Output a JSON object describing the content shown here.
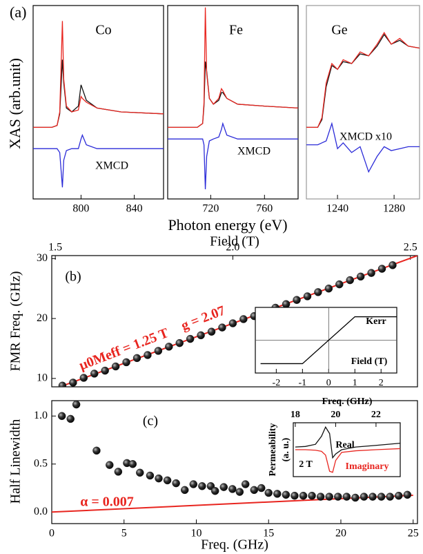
{
  "chart_data": [
    {
      "type": "line",
      "panel_label": "(a)",
      "ylabel": "XAS (arb.unit)",
      "xlabel": "Photon energy (eV)",
      "title": "Co",
      "annotations": [
        {
          "text": "XMCD"
        }
      ],
      "xlim": [
        764,
        862
      ],
      "xticks": [
        800,
        840
      ],
      "ylim": [
        0,
        1
      ],
      "x": [
        764,
        778,
        782,
        784,
        786,
        787,
        789,
        793,
        798,
        800,
        801,
        804,
        812,
        830,
        862
      ],
      "series": [
        {
          "color": "#111111",
          "values": [
            0.37,
            0.37,
            0.38,
            0.44,
            0.72,
            0.6,
            0.47,
            0.45,
            0.48,
            0.59,
            0.57,
            0.51,
            0.47,
            0.45,
            0.44
          ]
        },
        {
          "color": "#e8251f",
          "values": [
            0.37,
            0.37,
            0.38,
            0.45,
            0.92,
            0.62,
            0.48,
            0.45,
            0.46,
            0.53,
            0.52,
            0.5,
            0.47,
            0.45,
            0.44
          ]
        },
        {
          "color": "#2b2bd8",
          "values": [
            0.26,
            0.26,
            0.26,
            0.24,
            0.06,
            0.2,
            0.25,
            0.26,
            0.26,
            0.31,
            0.33,
            0.28,
            0.26,
            0.26,
            0.26
          ]
        }
      ]
    },
    {
      "type": "line",
      "title": "Fe",
      "annotations": [
        {
          "text": "XMCD"
        }
      ],
      "xlim": [
        688,
        785
      ],
      "xticks": [
        720,
        760
      ],
      "ylim": [
        0,
        1
      ],
      "x": [
        688,
        710,
        714,
        715,
        716,
        717,
        719,
        722,
        726,
        728,
        729,
        732,
        740,
        760,
        785
      ],
      "series": [
        {
          "color": "#111111",
          "values": [
            0.37,
            0.37,
            0.39,
            0.48,
            0.71,
            0.66,
            0.52,
            0.49,
            0.51,
            0.55,
            0.55,
            0.52,
            0.49,
            0.48,
            0.47
          ]
        },
        {
          "color": "#e8251f",
          "values": [
            0.37,
            0.37,
            0.39,
            0.5,
            0.99,
            0.65,
            0.52,
            0.49,
            0.52,
            0.57,
            0.56,
            0.52,
            0.49,
            0.48,
            0.47
          ]
        },
        {
          "color": "#2b2bd8",
          "values": [
            0.31,
            0.31,
            0.31,
            0.28,
            0.05,
            0.22,
            0.3,
            0.31,
            0.32,
            0.36,
            0.39,
            0.33,
            0.31,
            0.31,
            0.31
          ]
        }
      ]
    },
    {
      "type": "line",
      "title": "Ge",
      "annotations": [
        {
          "text": "XMCD x10"
        }
      ],
      "xlim": [
        1218,
        1298
      ],
      "xticks": [
        1240,
        1280
      ],
      "ylim": [
        0,
        1
      ],
      "x": [
        1218,
        1226,
        1229,
        1232,
        1236,
        1240,
        1244,
        1250,
        1256,
        1262,
        1268,
        1273,
        1278,
        1284,
        1290,
        1298
      ],
      "series": [
        {
          "color": "#111111",
          "values": [
            0.37,
            0.37,
            0.41,
            0.58,
            0.69,
            0.67,
            0.71,
            0.7,
            0.75,
            0.74,
            0.79,
            0.85,
            0.8,
            0.82,
            0.79,
            0.78
          ]
        },
        {
          "color": "#e8251f",
          "values": [
            0.37,
            0.37,
            0.42,
            0.6,
            0.7,
            0.67,
            0.72,
            0.7,
            0.76,
            0.74,
            0.8,
            0.86,
            0.8,
            0.83,
            0.79,
            0.78
          ]
        },
        {
          "color": "#2b2bd8",
          "values": [
            0.28,
            0.28,
            0.29,
            0.3,
            0.39,
            0.26,
            0.29,
            0.24,
            0.27,
            0.14,
            0.22,
            0.27,
            0.25,
            0.26,
            0.27,
            0.27
          ]
        }
      ]
    },
    {
      "type": "scatter",
      "panel_label": "(b)",
      "ylabel": "FMR Freq. (GHz)",
      "xlabel": "Field (T)",
      "xaxis": "top",
      "xlim": [
        1.49,
        2.52
      ],
      "xticks": [
        1.5,
        {
          "value": 2,
          "label": "2.0"
        },
        2.5
      ],
      "ylim": [
        8.6,
        30.5
      ],
      "yticks": [
        10,
        20,
        30
      ],
      "annotations": [
        {
          "text": "μ0Meff = 1.25 T",
          "color": "#e8251f"
        },
        {
          "text": "g = 2.07",
          "color": "#e8251f"
        }
      ],
      "series": [
        {
          "type": "line",
          "color": "#e8251f",
          "x": [
            1.52,
            2.52
          ],
          "values": [
            8.75,
            30.5
          ]
        },
        {
          "color": "#222222",
          "x": [
            1.52,
            1.55,
            1.58,
            1.61,
            1.64,
            1.67,
            1.7,
            1.73,
            1.76,
            1.79,
            1.82,
            1.85,
            1.88,
            1.91,
            1.94,
            1.97,
            2.0,
            2.03,
            2.06,
            2.09,
            2.12,
            2.15,
            2.18,
            2.21,
            2.24,
            2.27,
            2.3,
            2.33,
            2.36,
            2.39,
            2.42,
            2.45
          ],
          "values": [
            8.8,
            9.3,
            10.1,
            10.8,
            11.3,
            12.0,
            12.7,
            13.4,
            13.9,
            14.6,
            15.3,
            15.9,
            16.6,
            17.2,
            17.8,
            18.5,
            19.2,
            19.9,
            20.4,
            21.1,
            21.8,
            22.4,
            23.1,
            23.7,
            24.4,
            25.0,
            25.7,
            26.4,
            27.0,
            27.6,
            28.3,
            28.9
          ]
        }
      ]
    },
    {
      "type": "line",
      "xlim": [
        -2.8,
        2.6
      ],
      "xticks": [
        -2,
        -1,
        0,
        1,
        2
      ],
      "ylim": [
        -1.4,
        1.4
      ],
      "annotations": [
        {
          "text": "Kerr"
        },
        {
          "text": "Field (T)"
        }
      ],
      "series": [
        {
          "color": "#000000",
          "x": [
            -2.6,
            -1,
            1,
            2.6
          ],
          "values": [
            -1,
            -1,
            1,
            1
          ]
        }
      ]
    },
    {
      "type": "scatter",
      "panel_label": "(c)",
      "ylabel": "Half Linewidth",
      "xlabel": "Freq. (GHz)",
      "xlim": [
        0,
        25.3
      ],
      "xticks": [
        0,
        5,
        10,
        15,
        20,
        25
      ],
      "ylim": [
        -0.12,
        1.16
      ],
      "yticks": [
        {
          "value": 0,
          "label": "0.0"
        },
        0.5,
        {
          "value": 1,
          "label": "1.0"
        }
      ],
      "annotations": [
        {
          "text": "α = 0.007",
          "color": "#e8251f"
        }
      ],
      "series": [
        {
          "type": "line",
          "color": "#e8251f",
          "x": [
            0,
            25
          ],
          "values": [
            0,
            0.175
          ]
        },
        {
          "color": "#222222",
          "x": [
            0.7,
            1.3,
            1.7,
            3.1,
            4.0,
            4.6,
            5.2,
            5.6,
            6.1,
            6.8,
            7.4,
            8.0,
            8.6,
            9.2,
            9.8,
            10.4,
            11.0,
            11.3,
            11.9,
            12.5,
            13.0,
            13.4,
            14.0,
            14.5,
            15.0,
            15.6,
            16.2,
            16.8,
            17.4,
            18.0,
            18.6,
            19.2,
            19.8,
            20.4,
            21.0,
            21.6,
            22.2,
            22.8,
            23.4,
            24.0,
            24.6
          ],
          "values": [
            1.0,
            0.97,
            1.12,
            0.64,
            0.49,
            0.42,
            0.51,
            0.5,
            0.41,
            0.38,
            0.35,
            0.33,
            0.3,
            0.23,
            0.29,
            0.27,
            0.27,
            0.22,
            0.26,
            0.24,
            0.21,
            0.29,
            0.23,
            0.25,
            0.2,
            0.19,
            0.18,
            0.17,
            0.17,
            0.17,
            0.16,
            0.16,
            0.16,
            0.16,
            0.15,
            0.16,
            0.16,
            0.16,
            0.16,
            0.17,
            0.18
          ]
        }
      ]
    },
    {
      "type": "line",
      "xlabel": "Freq. (GHz)",
      "ylabel": [
        "Permeability",
        "(a. u.)"
      ],
      "xaxis": "top",
      "xlim": [
        17.9,
        23.2
      ],
      "xticks": [
        18,
        20,
        22
      ],
      "ylim": [
        0,
        1
      ],
      "annotations": [
        {
          "text": "Real"
        },
        {
          "text": "2 T"
        },
        {
          "text": "Imaginary",
          "color": "#e8251f"
        }
      ],
      "x": [
        18,
        18.5,
        19,
        19.3,
        19.5,
        19.7,
        19.85,
        20,
        20.3,
        21,
        22,
        23.2
      ],
      "series": [
        {
          "color": "#111111",
          "values": [
            0.55,
            0.56,
            0.6,
            0.75,
            0.92,
            0.8,
            0.35,
            0.42,
            0.5,
            0.55,
            0.58,
            0.62
          ]
        },
        {
          "color": "#e8251f",
          "values": [
            0.5,
            0.5,
            0.49,
            0.47,
            0.4,
            0.1,
            0.08,
            0.3,
            0.45,
            0.48,
            0.5,
            0.52
          ]
        }
      ]
    }
  ]
}
